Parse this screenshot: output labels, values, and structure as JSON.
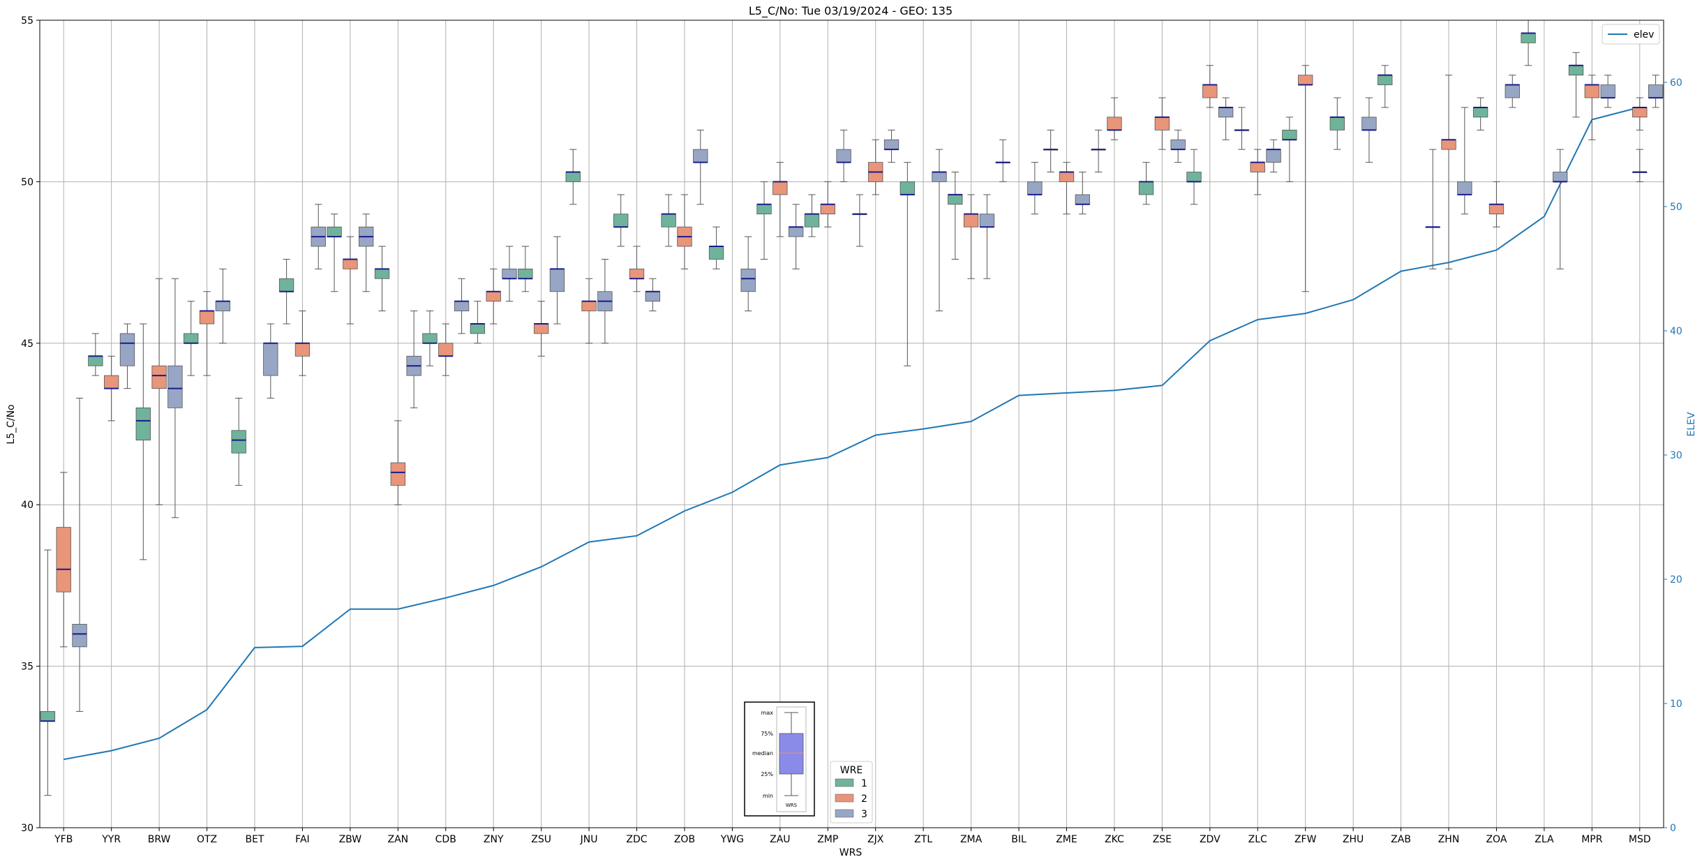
{
  "chart_data": {
    "type": "box",
    "title": "L5_C/No: Tue 03/19/2024 - GEO: 135",
    "xlabel": "WRS",
    "ylabel": "L5_C/No",
    "y2label": "ELEV",
    "ylim": [
      30,
      55
    ],
    "y2lim": [
      0,
      65
    ],
    "yticks": [
      "30",
      "35",
      "40",
      "45",
      "50",
      "55"
    ],
    "y2ticks": [
      "0",
      "10",
      "20",
      "30",
      "40",
      "50",
      "60"
    ],
    "grid": true,
    "categories": [
      "YFB",
      "YYR",
      "BRW",
      "OTZ",
      "BET",
      "FAI",
      "ZBW",
      "ZAN",
      "CDB",
      "ZNY",
      "ZSU",
      "JNU",
      "ZDC",
      "ZOB",
      "YWG",
      "ZAU",
      "ZMP",
      "ZJX",
      "ZTL",
      "ZMA",
      "BIL",
      "ZME",
      "ZKC",
      "ZSE",
      "ZDV",
      "ZLC",
      "ZFW",
      "ZHU",
      "ZAB",
      "ZHN",
      "ZOA",
      "ZLA",
      "MPR",
      "MSD"
    ],
    "legend_wre": {
      "title": "WRE",
      "entries": [
        "1",
        "2",
        "3"
      ],
      "colors": [
        "#6fb39a",
        "#e8957a",
        "#97a6c4"
      ],
      "placement": "bottom-center"
    },
    "legend_elev": {
      "label": "elev",
      "placement": "top-right"
    },
    "key_box": {
      "labels": [
        "max",
        "75%",
        "median",
        "25%",
        "min"
      ],
      "xlabel": "WRS"
    },
    "series": [
      {
        "name": "1",
        "boxes": [
          [
            0,
            31,
            33.3,
            33.3,
            33.6,
            38.6
          ],
          [
            1,
            44,
            44.3,
            44.6,
            44.6,
            45.3
          ],
          [
            2,
            38.3,
            42,
            42.6,
            43,
            45.6
          ],
          [
            3,
            44,
            45,
            45,
            45.3,
            46.3
          ],
          [
            4,
            40.6,
            41.6,
            42,
            42.3,
            43.3
          ],
          [
            5,
            45.6,
            46.6,
            46.6,
            47,
            47.6
          ],
          [
            6,
            46.6,
            48.3,
            48.3,
            48.6,
            49
          ],
          [
            7,
            46,
            47,
            47.3,
            47.3,
            48
          ],
          [
            8,
            44.3,
            45,
            45,
            45.3,
            46
          ],
          [
            9,
            45,
            45.3,
            45.6,
            45.6,
            46.3
          ],
          [
            10,
            46.6,
            47,
            47,
            47.3,
            48
          ],
          [
            11,
            49.3,
            50,
            50.3,
            50.3,
            51
          ],
          [
            12,
            48,
            48.6,
            48.6,
            49,
            49.6
          ],
          [
            13,
            48,
            48.6,
            49,
            49,
            49.6
          ],
          [
            14,
            47.3,
            47.6,
            48,
            48,
            48.6
          ],
          [
            15,
            47.6,
            49,
            49.3,
            49.3,
            50
          ],
          [
            16,
            48.3,
            48.6,
            49,
            49,
            49.6
          ],
          [
            17,
            48,
            49,
            49,
            49,
            49.6
          ],
          [
            18,
            44.3,
            49.6,
            49.6,
            50,
            50.6
          ],
          [
            19,
            47.6,
            49.3,
            49.6,
            49.6,
            50.3
          ],
          [
            20,
            50,
            50.6,
            50.6,
            50.6,
            51.3
          ],
          [
            21,
            50.3,
            51,
            51,
            51,
            51.6
          ],
          [
            22,
            50.3,
            51,
            51,
            51,
            51.6
          ],
          [
            23,
            49.3,
            49.6,
            50,
            50,
            50.6
          ],
          [
            24,
            49.3,
            50,
            50,
            50.3,
            51
          ],
          [
            25,
            51,
            51.6,
            51.6,
            51.6,
            52.3
          ],
          [
            26,
            50,
            51.3,
            51.3,
            51.6,
            52
          ],
          [
            27,
            51,
            51.6,
            52,
            52,
            52.6
          ],
          [
            28,
            52.3,
            53,
            53.3,
            53.3,
            53.6
          ],
          [
            29,
            47.3,
            48.6,
            48.6,
            48.6,
            51
          ],
          [
            30,
            51.6,
            52,
            52.3,
            52.3,
            52.6
          ],
          [
            31,
            53.6,
            54.3,
            54.6,
            54.6,
            55
          ],
          [
            32,
            52,
            53.3,
            53.6,
            53.6,
            54
          ]
        ]
      },
      {
        "name": "2",
        "boxes": [
          [
            0,
            35.6,
            37.3,
            38,
            39.3,
            41
          ],
          [
            1,
            42.6,
            43.6,
            43.6,
            44,
            44.6
          ],
          [
            2,
            40,
            43.6,
            44,
            44.3,
            47
          ],
          [
            3,
            44,
            45.6,
            46,
            46,
            46.6
          ],
          [
            5,
            44,
            44.6,
            45,
            45,
            46
          ],
          [
            6,
            45.6,
            47.3,
            47.6,
            47.6,
            48.3
          ],
          [
            7,
            40,
            40.6,
            41,
            41.3,
            42.6
          ],
          [
            8,
            44,
            44.6,
            44.6,
            45,
            45.6
          ],
          [
            9,
            45.6,
            46.3,
            46.6,
            46.6,
            47.3
          ],
          [
            10,
            44.6,
            45.3,
            45.6,
            45.6,
            46.3
          ],
          [
            11,
            45,
            46,
            46.3,
            46.3,
            47
          ],
          [
            12,
            46.6,
            47,
            47,
            47.3,
            48
          ],
          [
            13,
            47.3,
            48,
            48.3,
            48.6,
            49.6
          ],
          [
            15,
            48.3,
            49.6,
            50,
            50,
            50.6
          ],
          [
            16,
            48.6,
            49,
            49.3,
            49.3,
            50
          ],
          [
            17,
            49.6,
            50,
            50.3,
            50.6,
            51.3
          ],
          [
            19,
            47,
            48.6,
            49,
            49,
            49.6
          ],
          [
            21,
            49,
            50,
            50.3,
            50.3,
            50.6
          ],
          [
            22,
            51.3,
            51.6,
            51.6,
            52,
            52.6
          ],
          [
            23,
            51,
            51.6,
            52,
            52,
            52.6
          ],
          [
            24,
            52.3,
            52.6,
            53,
            53,
            53.6
          ],
          [
            25,
            49.6,
            50.3,
            50.6,
            50.6,
            51
          ],
          [
            26,
            46.6,
            53,
            53,
            53.3,
            53.6
          ],
          [
            29,
            47.3,
            51,
            51.3,
            51.3,
            53.3
          ],
          [
            30,
            48.6,
            49,
            49.3,
            49.3,
            50
          ],
          [
            32,
            51.3,
            52.6,
            53,
            53,
            53.3
          ],
          [
            33,
            51.6,
            52,
            52.3,
            52.3,
            52.6
          ],
          [
            33,
            50,
            50.3,
            50.3,
            50.3,
            51
          ]
        ]
      },
      {
        "name": "3",
        "boxes": [
          [
            0,
            33.6,
            35.6,
            36,
            36.3,
            43.3
          ],
          [
            1,
            43.6,
            44.3,
            45,
            45.3,
            45.6
          ],
          [
            2,
            39.6,
            43,
            43.6,
            44.3,
            47
          ],
          [
            3,
            45,
            46,
            46.3,
            46.3,
            47.3
          ],
          [
            4,
            43.3,
            44,
            45,
            45,
            45.6
          ],
          [
            5,
            47.3,
            48,
            48.3,
            48.6,
            49.3
          ],
          [
            6,
            46.6,
            48,
            48.3,
            48.6,
            49
          ],
          [
            7,
            43,
            44,
            44.3,
            44.6,
            46
          ],
          [
            8,
            45.3,
            46,
            46.3,
            46.3,
            47
          ],
          [
            9,
            46.3,
            47,
            47,
            47.3,
            48
          ],
          [
            10,
            45.6,
            46.6,
            47.3,
            47.3,
            48.3
          ],
          [
            11,
            45,
            46,
            46.3,
            46.6,
            47.6
          ],
          [
            12,
            46,
            46.3,
            46.6,
            46.6,
            47
          ],
          [
            13,
            49.3,
            50.6,
            50.6,
            51,
            51.6
          ],
          [
            14,
            46,
            46.6,
            47,
            47.3,
            48.3
          ],
          [
            15,
            47.3,
            48.3,
            48.6,
            48.6,
            49.3
          ],
          [
            16,
            50,
            50.6,
            50.6,
            51,
            51.6
          ],
          [
            17,
            50.6,
            51,
            51,
            51.3,
            51.6
          ],
          [
            18,
            46,
            50,
            50.3,
            50.3,
            51
          ],
          [
            19,
            47,
            48.6,
            48.6,
            49,
            49.6
          ],
          [
            20,
            49,
            49.6,
            49.6,
            50,
            50.6
          ],
          [
            21,
            49,
            49.3,
            49.3,
            49.6,
            50.3
          ],
          [
            23,
            50.6,
            51,
            51,
            51.3,
            51.6
          ],
          [
            24,
            51.3,
            52,
            52.3,
            52.3,
            52.6
          ],
          [
            25,
            50.3,
            50.6,
            51,
            51,
            51.3
          ],
          [
            27,
            50.6,
            51.6,
            51.6,
            52,
            52.6
          ],
          [
            29,
            49,
            49.6,
            49.6,
            50,
            52.3
          ],
          [
            30,
            52.3,
            52.6,
            53,
            53,
            53.3
          ],
          [
            31,
            47.3,
            50,
            50,
            50.3,
            51
          ],
          [
            32,
            52.3,
            52.6,
            52.6,
            53,
            53.3
          ],
          [
            33,
            52.3,
            52.6,
            52.6,
            53,
            53.3
          ]
        ]
      }
    ],
    "elev": {
      "name": "elev",
      "x": [
        "YFB",
        "YYR",
        "BRW",
        "OTZ",
        "BET",
        "FAI",
        "ZBW",
        "ZAN",
        "CDB",
        "ZNY",
        "ZSU",
        "JNU",
        "ZDC",
        "ZOB",
        "YWG",
        "ZAU",
        "ZMP",
        "ZJX",
        "ZTL",
        "ZMA",
        "BIL",
        "ZME",
        "ZKC",
        "ZSE",
        "ZDV",
        "ZLC",
        "ZFW",
        "ZHU",
        "ZAB",
        "ZHN",
        "ZOA",
        "ZLA",
        "MPR",
        "MSD"
      ],
      "values": [
        5.5,
        6.2,
        7.2,
        9.5,
        14.5,
        14.6,
        17.6,
        17.6,
        18.5,
        19.5,
        21.0,
        23.0,
        23.5,
        25.5,
        27.0,
        29.2,
        29.8,
        31.6,
        32.1,
        32.7,
        34.8,
        35.0,
        35.2,
        35.6,
        39.2,
        40.9,
        41.4,
        42.5,
        44.8,
        45.5,
        46.5,
        49.2,
        57.0,
        58.0
      ]
    },
    "colors": {
      "wre1": "#6fb39a",
      "wre2": "#e8957a",
      "wre3": "#97a6c4",
      "median": "#1a1a8c",
      "elev": "#1f77b4",
      "whisker": "#555555",
      "grid": "#b0b0b0",
      "key_box": "#8a8ae8"
    }
  }
}
